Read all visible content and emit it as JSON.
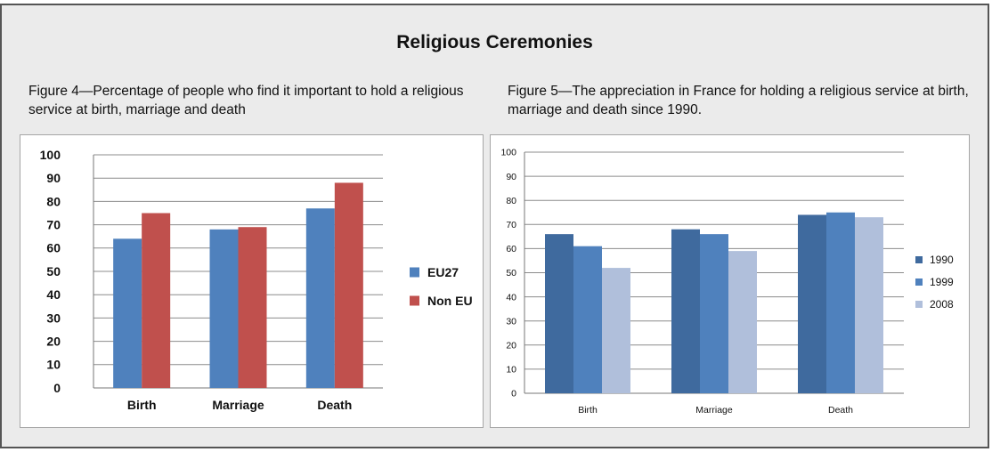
{
  "page": {
    "title": "Religious Ceremonies",
    "figure4_caption": "Figure 4—Percentage of people who find it important to hold a religious service at birth, marriage and death",
    "figure5_caption": "Figure 5—The appreciation in France for holding a religious service at birth, marriage and death since 1990."
  },
  "chart_data": [
    {
      "type": "bar",
      "categories": [
        "Birth",
        "Marriage",
        "Death"
      ],
      "series": [
        {
          "name": "EU27",
          "values": [
            64,
            68,
            77
          ],
          "color": "#4f81bd"
        },
        {
          "name": "Non EU",
          "values": [
            75,
            69,
            88
          ],
          "color": "#c0504d"
        }
      ],
      "ylim": [
        0,
        100
      ],
      "yticks": [
        "0",
        "10",
        "20",
        "30",
        "40",
        "50",
        "60",
        "70",
        "80",
        "90",
        "100"
      ],
      "grid": true,
      "legend": "right"
    },
    {
      "type": "bar",
      "categories": [
        "Birth",
        "Marriage",
        "Death"
      ],
      "series": [
        {
          "name": "1990",
          "values": [
            66,
            68,
            74
          ],
          "color": "#3f6a9e"
        },
        {
          "name": "1999",
          "values": [
            61,
            66,
            75
          ],
          "color": "#4f81bd"
        },
        {
          "name": "2008",
          "values": [
            52,
            59,
            73
          ],
          "color": "#b0bfdb"
        }
      ],
      "ylim": [
        0,
        100
      ],
      "yticks": [
        "0",
        "10",
        "20",
        "30",
        "40",
        "50",
        "60",
        "70",
        "80",
        "90",
        "100"
      ],
      "grid": true,
      "legend": "right"
    }
  ]
}
